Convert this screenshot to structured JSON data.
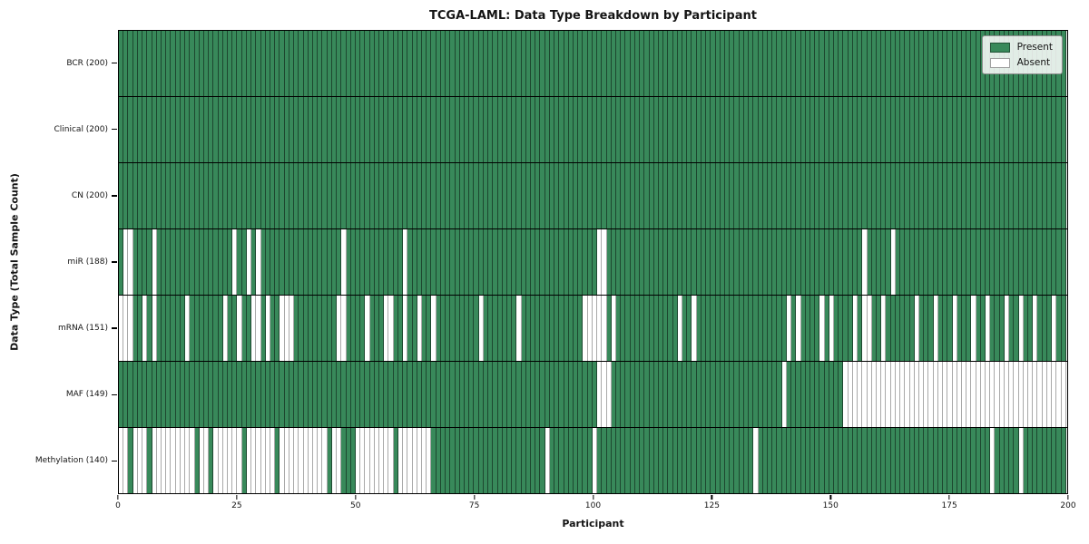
{
  "colors": {
    "present": "#38895a",
    "absent": "#ffffff",
    "grid_on_green": "rgba(0,0,0,0.48)",
    "grid_on_white": "#a9a9a9",
    "row_separator": "#000000"
  },
  "legend": {
    "entries": [
      "Present",
      "Absent"
    ]
  },
  "chart_data": {
    "type": "heatmap",
    "title": "TCGA-LAML: Data Type Breakdown by Participant",
    "xlabel": "Participant",
    "ylabel": "Data Type (Total Sample Count)",
    "n_participants": 200,
    "x_range": [
      0,
      200
    ],
    "x_ticks": [
      0,
      25,
      50,
      75,
      100,
      125,
      150,
      175,
      200
    ],
    "legend": [
      "Present",
      "Absent"
    ],
    "legend_position": "upper right",
    "grid": "per-cell vertical edges",
    "rows": [
      {
        "data_type": "BCR",
        "label": "BCR (200)",
        "present_count": 200,
        "absent_indices": []
      },
      {
        "data_type": "Clinical",
        "label": "Clinical (200)",
        "present_count": 200,
        "absent_indices": []
      },
      {
        "data_type": "CN",
        "label": "CN (200)",
        "present_count": 200,
        "absent_indices": []
      },
      {
        "data_type": "miR",
        "label": "miR (188)",
        "present_count": 188,
        "absent_indices": [
          1,
          2,
          7,
          24,
          27,
          29,
          47,
          60,
          101,
          102,
          157,
          163
        ]
      },
      {
        "data_type": "mRNA",
        "label": "mRNA (151)",
        "present_count": 151,
        "absent_indices": [
          0,
          1,
          2,
          5,
          7,
          14,
          22,
          25,
          28,
          29,
          31,
          34,
          35,
          36,
          46,
          47,
          52,
          56,
          57,
          60,
          63,
          66,
          76,
          84,
          98,
          99,
          100,
          101,
          102,
          104,
          118,
          121,
          141,
          143,
          148,
          150,
          155,
          157,
          158,
          161,
          168,
          172,
          176,
          180,
          183,
          187,
          190,
          193,
          197
        ]
      },
      {
        "data_type": "MAF",
        "label": "MAF (149)",
        "present_count": 149,
        "absent_indices": [
          101,
          102,
          103,
          140,
          153,
          154,
          155,
          156,
          157,
          158,
          159,
          160,
          161,
          162,
          163,
          164,
          165,
          166,
          167,
          168,
          169,
          170,
          171,
          172,
          173,
          174,
          175,
          176,
          177,
          178,
          179,
          180,
          181,
          182,
          183,
          184,
          185,
          186,
          187,
          188,
          189,
          190,
          191,
          192,
          193,
          194,
          195,
          196,
          197,
          198,
          199
        ]
      },
      {
        "data_type": "Methylation",
        "label": "Methylation (140)",
        "present_count": 140,
        "absent_indices": [
          0,
          1,
          3,
          4,
          5,
          7,
          8,
          9,
          10,
          11,
          12,
          13,
          14,
          15,
          17,
          18,
          20,
          21,
          22,
          23,
          24,
          25,
          27,
          28,
          29,
          30,
          31,
          32,
          34,
          35,
          36,
          37,
          38,
          39,
          40,
          41,
          42,
          43,
          45,
          46,
          50,
          51,
          52,
          53,
          54,
          55,
          56,
          57,
          59,
          60,
          61,
          62,
          63,
          64,
          65,
          90,
          100,
          134,
          184,
          190
        ]
      }
    ]
  }
}
